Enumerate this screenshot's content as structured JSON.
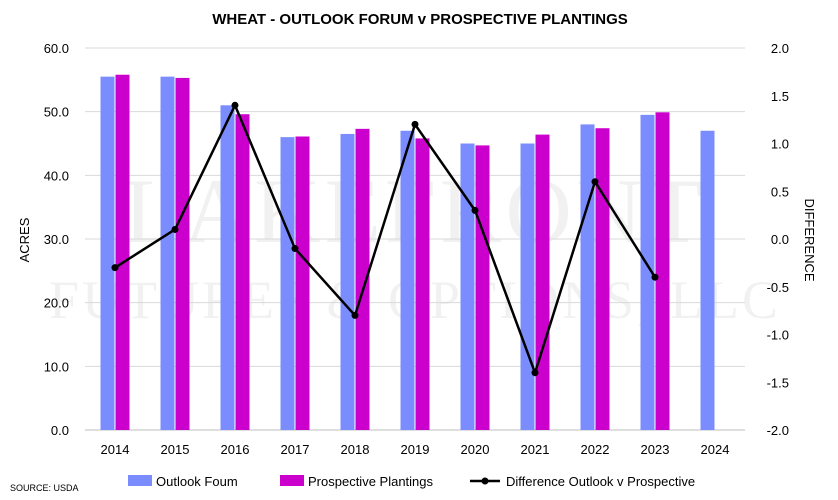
{
  "chart_data": {
    "type": "bar",
    "title": "WHEAT - OUTLOOK FORUM v PROSPECTIVE PLANTINGS",
    "ylabel": "ACRES",
    "y2label": "DIFFERENCE",
    "source": "SOURCE: USDA",
    "watermark": [
      "LAKEFRONT",
      "FUTURES & OPTIONS, LLC"
    ],
    "categories": [
      "2014",
      "2015",
      "2016",
      "2017",
      "2018",
      "2019",
      "2020",
      "2021",
      "2022",
      "2023",
      "2024"
    ],
    "ylim": [
      0,
      60
    ],
    "y2lim": [
      -2,
      2
    ],
    "yticks": [
      "0.0",
      "10.0",
      "20.0",
      "30.0",
      "40.0",
      "50.0",
      "60.0"
    ],
    "y2ticks": [
      "-2.0",
      "-1.5",
      "-1.0",
      "-0.5",
      "0.0",
      "0.5",
      "1.0",
      "1.5",
      "2.0"
    ],
    "grid": true,
    "legend_position": "bottom",
    "series": [
      {
        "name": "Outlook Foum",
        "type": "bar",
        "axis": "left",
        "color": "#7b8cff",
        "values": [
          55.5,
          55.5,
          51.0,
          46.0,
          46.5,
          47.0,
          45.0,
          45.0,
          48.0,
          49.5,
          47.0
        ]
      },
      {
        "name": "Prospective Plantings",
        "type": "bar",
        "axis": "left",
        "color": "#cc00cc",
        "values": [
          55.8,
          55.3,
          49.6,
          46.1,
          47.3,
          45.8,
          44.7,
          46.4,
          47.4,
          49.9,
          null
        ]
      },
      {
        "name": "Difference Outlook v Prospective",
        "type": "line",
        "axis": "right",
        "color": "#000000",
        "values": [
          -0.3,
          0.1,
          1.4,
          -0.1,
          -0.8,
          1.2,
          0.3,
          -1.4,
          0.6,
          -0.4,
          null
        ]
      }
    ]
  }
}
